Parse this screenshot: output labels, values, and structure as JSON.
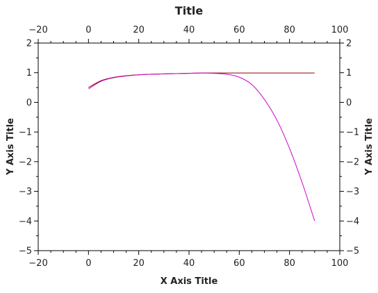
{
  "chart_data": {
    "type": "line",
    "title": "Title",
    "xlabel": "X Axis Title",
    "ylabel": "Y Axis Title",
    "xlim": [
      -20,
      100
    ],
    "ylim": [
      -5,
      2
    ],
    "xticks": [
      -20,
      0,
      20,
      40,
      60,
      80,
      100
    ],
    "yticks": [
      -5,
      -4,
      -3,
      -2,
      -1,
      0,
      1,
      2
    ],
    "xtick_labels": [
      "−20",
      "0",
      "20",
      "40",
      "60",
      "80",
      "100"
    ],
    "ytick_labels": [
      "−5",
      "−4",
      "−3",
      "−2",
      "−1",
      "0",
      "1",
      "2"
    ],
    "grid": false,
    "series": [
      {
        "color": "#8b0000",
        "x": [
          0,
          5,
          10,
          15,
          20,
          25,
          30,
          35,
          40,
          45,
          50,
          55,
          60,
          65,
          70,
          75,
          80,
          85,
          90
        ],
        "y": [
          0.5,
          0.73,
          0.84,
          0.9,
          0.93,
          0.95,
          0.96,
          0.97,
          0.98,
          0.99,
          0.99,
          0.99,
          0.99,
          0.99,
          0.99,
          0.99,
          0.99,
          0.99,
          0.99
        ]
      },
      {
        "color": "#cc00cc",
        "x": [
          0,
          5,
          10,
          15,
          20,
          25,
          30,
          35,
          40,
          45,
          50,
          55,
          60,
          65,
          70,
          75,
          80,
          85,
          90
        ],
        "y": [
          0.45,
          0.71,
          0.83,
          0.89,
          0.93,
          0.95,
          0.96,
          0.97,
          0.98,
          0.99,
          0.98,
          0.95,
          0.85,
          0.6,
          0.1,
          -0.6,
          -1.55,
          -2.7,
          -4.0
        ]
      }
    ]
  }
}
